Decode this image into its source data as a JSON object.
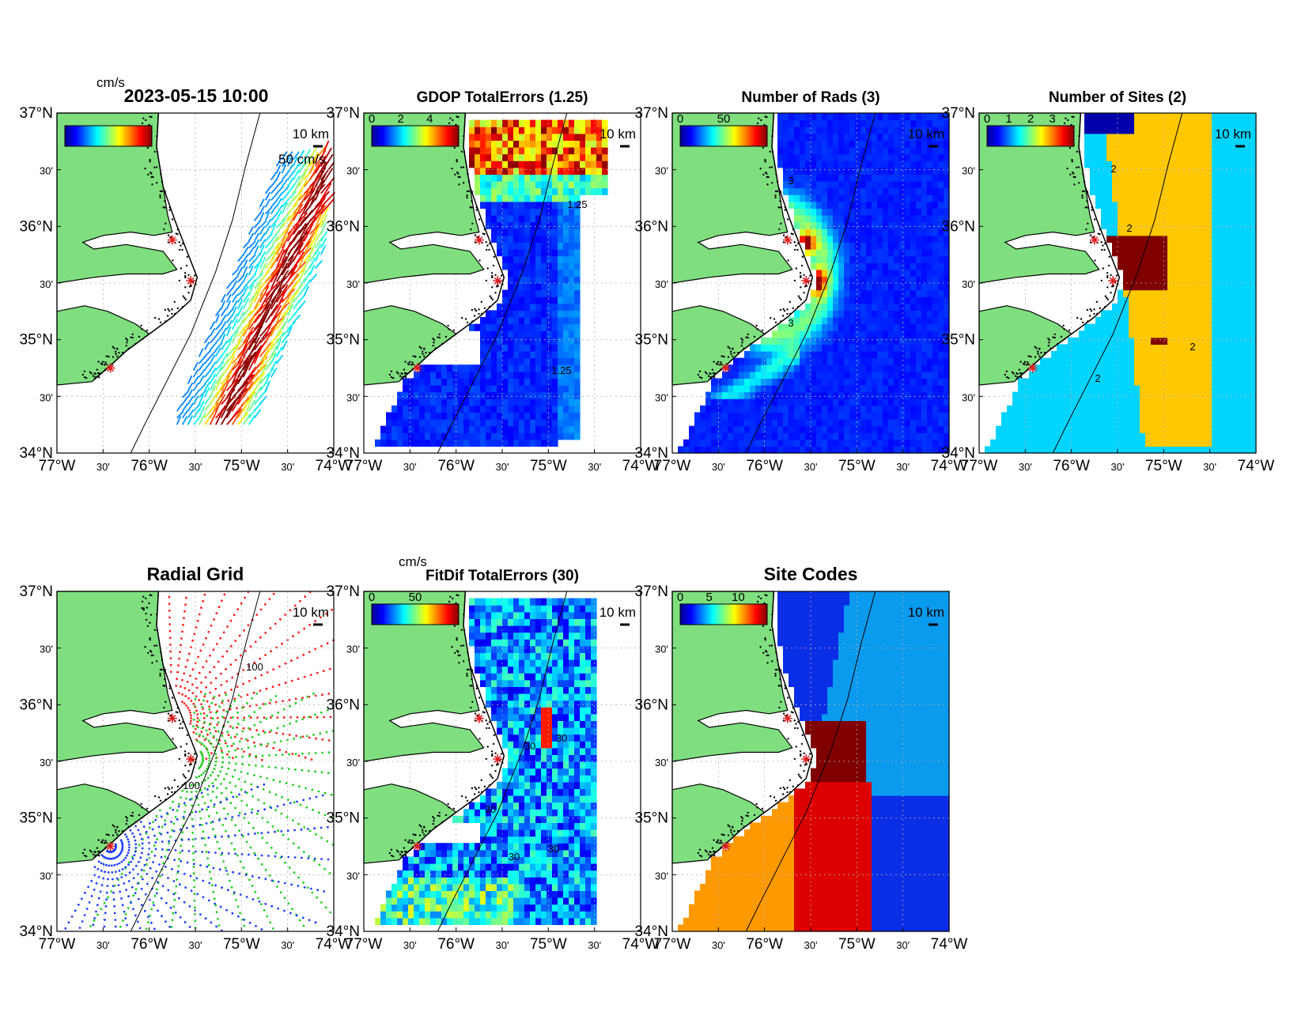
{
  "figure": {
    "timestamp": "2023-05-15 10:00",
    "unit_label": "cm/s",
    "scale_label": "10 km",
    "vector_scale_label": "50 cm/s",
    "axis_labels": {
      "lat": [
        "37°N",
        "30'",
        "36°N",
        "30'",
        "35°N",
        "30'",
        "34°N"
      ],
      "lon": [
        "77°W",
        "30'",
        "76°W",
        "30'",
        "75°W",
        "30'",
        "74°W"
      ]
    }
  },
  "panels": [
    {
      "id": "surface-currents",
      "title": "",
      "colorbar_ticks": [],
      "contour_labels": []
    },
    {
      "id": "gdop",
      "title": "GDOP TotalErrors (1.25)",
      "colorbar_ticks": [
        "0",
        "2",
        "4"
      ],
      "contour_labels": [
        "1.25",
        "1.25"
      ]
    },
    {
      "id": "num-rads",
      "title": "Number of Rads (3)",
      "colorbar_ticks": [
        "0",
        "50"
      ],
      "contour_labels": [
        "3",
        "3"
      ]
    },
    {
      "id": "num-sites",
      "title": "Number of Sites (2)",
      "colorbar_ticks": [
        "0",
        "1",
        "2",
        "3"
      ],
      "contour_labels": [
        "2",
        "2",
        "2",
        "2"
      ]
    },
    {
      "id": "radial-grid",
      "title": "Radial Grid",
      "colorbar_ticks": [],
      "contour_labels": [
        "100",
        "100"
      ]
    },
    {
      "id": "fitdif",
      "title": "FitDif TotalErrors (30)",
      "colorbar_ticks": [
        "0",
        "50"
      ],
      "contour_labels": [
        "30",
        "30",
        "30",
        "30",
        "30"
      ]
    },
    {
      "id": "site-codes",
      "title": "Site Codes",
      "colorbar_ticks": [
        "0",
        "5",
        "10"
      ],
      "contour_labels": []
    }
  ],
  "colors": {
    "land": "#7fdf7f",
    "site_marker": "#e02020",
    "radial_sites": [
      "#ff2020",
      "#20d020",
      "#2040ff"
    ]
  }
}
